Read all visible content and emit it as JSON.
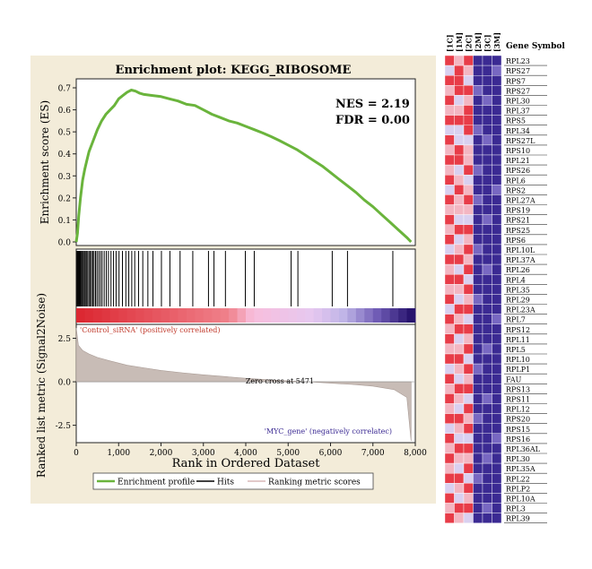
{
  "chart_data": [
    {
      "type": "line",
      "title": "Enrichment plot: KEGG_RIBOSOME",
      "ylabel": "Enrichment score (ES)",
      "xlabel": "Rank in Ordered Dataset",
      "ylim": [
        0.0,
        0.7
      ],
      "xlim": [
        0,
        8000
      ],
      "yticks": [
        "0.7",
        "0.6",
        "0.5",
        "0.4",
        "0.3",
        "0.2",
        "0.1",
        "0.0"
      ],
      "xticks": [
        "0",
        "1,000",
        "2,000",
        "3,000",
        "4,000",
        "5,000",
        "6,000",
        "7,000",
        "8,000"
      ],
      "annotations": {
        "nes": "NES = 2.19",
        "fdr": "FDR = 0.00"
      },
      "series": [
        {
          "name": "Enrichment profile",
          "color": "#6ab43c",
          "x": [
            0,
            30,
            60,
            100,
            150,
            200,
            250,
            300,
            400,
            500,
            600,
            700,
            800,
            900,
            1000,
            1100,
            1200,
            1300,
            1400,
            1500,
            1600,
            1800,
            2000,
            2200,
            2400,
            2600,
            2800,
            3000,
            3200,
            3400,
            3600,
            3800,
            4000,
            4200,
            4400,
            4600,
            4800,
            5000,
            5200,
            5400,
            5600,
            5800,
            6000,
            6200,
            6400,
            6600,
            6800,
            7000,
            7200,
            7400,
            7600,
            7800,
            7900
          ],
          "y": [
            0.0,
            0.04,
            0.12,
            0.2,
            0.28,
            0.33,
            0.37,
            0.41,
            0.46,
            0.51,
            0.55,
            0.58,
            0.6,
            0.62,
            0.65,
            0.665,
            0.68,
            0.69,
            0.685,
            0.675,
            0.67,
            0.665,
            0.66,
            0.65,
            0.64,
            0.625,
            0.62,
            0.6,
            0.58,
            0.565,
            0.55,
            0.54,
            0.525,
            0.51,
            0.495,
            0.478,
            0.46,
            0.44,
            0.42,
            0.395,
            0.37,
            0.345,
            0.315,
            0.285,
            0.255,
            0.225,
            0.19,
            0.16,
            0.125,
            0.09,
            0.055,
            0.02,
            0.0
          ]
        }
      ]
    },
    {
      "type": "line",
      "ylabel": "Ranked list metric (Signal2Noise)",
      "yticks": [
        "2.5",
        "0.0",
        "-2.5"
      ],
      "ylim": [
        -3.5,
        3.3
      ],
      "zero_cross_label": "Zero cross at 5471",
      "zero_cross": 5471,
      "positive_label": "'Control_siRNA' (positively correlated)",
      "negative_label": "'MYC_gene' (negatively correlatec)",
      "hits": [
        20,
        40,
        55,
        75,
        95,
        120,
        140,
        165,
        190,
        215,
        240,
        270,
        300,
        330,
        360,
        390,
        420,
        455,
        490,
        530,
        570,
        610,
        660,
        710,
        760,
        820,
        880,
        940,
        1010,
        1090,
        1170,
        1240,
        1310,
        1380,
        1470,
        1570,
        1690,
        1810,
        2010,
        2210,
        2450,
        2750,
        3120,
        3250,
        3520,
        3990,
        4200,
        5070,
        5230,
        6040,
        6400,
        7470
      ],
      "metric_profile": {
        "x": [
          0,
          50,
          150,
          300,
          500,
          800,
          1200,
          1600,
          2000,
          2500,
          3000,
          3500,
          4000,
          4500,
          5000,
          5471,
          6000,
          6500,
          7000,
          7500,
          7800,
          7900
        ],
        "y": [
          3.1,
          2.1,
          1.8,
          1.6,
          1.4,
          1.2,
          0.95,
          0.8,
          0.65,
          0.52,
          0.4,
          0.3,
          0.2,
          0.12,
          0.05,
          0.0,
          -0.08,
          -0.15,
          -0.25,
          -0.45,
          -0.9,
          -3.4
        ]
      },
      "legend": [
        "Enrichment profile",
        "Hits",
        "Ranking metric scores"
      ],
      "legend_colors": [
        "#6ab43c",
        "#000000",
        "#d9b7b7"
      ]
    },
    {
      "type": "heatmap",
      "columns": [
        "1C",
        "1M",
        "2C",
        "2M",
        "3C",
        "3M"
      ],
      "row_header": "Gene Symbol",
      "rows": [
        "RPL23",
        "RPS27",
        "RPS7",
        "RPS27",
        "RPL30",
        "RPL37",
        "RPS5",
        "RPL34",
        "RPS27L",
        "RPS10",
        "RPL21",
        "RPS26",
        "RPL6",
        "RPS2",
        "RPL27A",
        "RPS19",
        "RPS21",
        "RPS25",
        "RPS6",
        "RPL10L",
        "RPL37A",
        "RPL26",
        "RPL4",
        "RPL35",
        "RPL29",
        "RPL23A",
        "RPL7",
        "RPS12",
        "RPL11",
        "RPL5",
        "RPL10",
        "RPLP1",
        "FAU",
        "RPS13",
        "RPS11",
        "RPL12",
        "RPS20",
        "RPS15",
        "RPS16",
        "RPL36AL",
        "RPL30",
        "RPL35A",
        "RPL22",
        "RPLP2",
        "RPL10A",
        "RPL3",
        "RPL39"
      ],
      "values": [
        [
          5,
          4,
          5,
          1,
          1,
          1
        ],
        [
          3,
          5,
          4,
          1,
          1,
          2
        ],
        [
          5,
          5,
          3,
          1,
          1,
          1
        ],
        [
          4,
          5,
          5,
          2,
          1,
          1
        ],
        [
          5,
          3,
          4,
          1,
          2,
          1
        ],
        [
          4,
          4,
          5,
          1,
          1,
          1
        ],
        [
          5,
          5,
          5,
          1,
          1,
          1
        ],
        [
          3,
          3,
          5,
          2,
          1,
          1
        ],
        [
          5,
          3,
          3,
          1,
          2,
          1
        ],
        [
          4,
          5,
          4,
          1,
          1,
          1
        ],
        [
          5,
          5,
          4,
          1,
          1,
          1
        ],
        [
          4,
          3,
          5,
          2,
          1,
          1
        ],
        [
          5,
          4,
          3,
          1,
          1,
          1
        ],
        [
          3,
          5,
          4,
          1,
          1,
          2
        ],
        [
          5,
          4,
          5,
          2,
          1,
          1
        ],
        [
          4,
          4,
          4,
          1,
          1,
          1
        ],
        [
          5,
          3,
          3,
          1,
          2,
          1
        ],
        [
          4,
          5,
          5,
          1,
          1,
          1
        ],
        [
          5,
          3,
          4,
          1,
          1,
          1
        ],
        [
          3,
          4,
          5,
          2,
          1,
          1
        ],
        [
          5,
          5,
          4,
          1,
          1,
          1
        ],
        [
          4,
          3,
          5,
          1,
          2,
          1
        ],
        [
          5,
          5,
          3,
          1,
          1,
          1
        ],
        [
          4,
          4,
          5,
          1,
          1,
          1
        ],
        [
          5,
          3,
          4,
          2,
          1,
          1
        ],
        [
          3,
          5,
          5,
          1,
          1,
          1
        ],
        [
          5,
          4,
          3,
          1,
          1,
          2
        ],
        [
          4,
          5,
          5,
          1,
          1,
          1
        ],
        [
          5,
          3,
          4,
          1,
          1,
          1
        ],
        [
          4,
          4,
          5,
          1,
          2,
          1
        ],
        [
          5,
          5,
          3,
          1,
          1,
          1
        ],
        [
          3,
          4,
          5,
          2,
          1,
          1
        ],
        [
          5,
          3,
          4,
          1,
          1,
          1
        ],
        [
          4,
          5,
          5,
          1,
          1,
          1
        ],
        [
          5,
          4,
          3,
          1,
          2,
          1
        ],
        [
          4,
          3,
          5,
          1,
          1,
          1
        ],
        [
          5,
          5,
          4,
          2,
          1,
          1
        ],
        [
          3,
          4,
          5,
          1,
          1,
          1
        ],
        [
          5,
          3,
          3,
          1,
          1,
          2
        ],
        [
          4,
          5,
          5,
          1,
          1,
          1
        ],
        [
          5,
          4,
          4,
          1,
          2,
          1
        ],
        [
          4,
          3,
          5,
          1,
          1,
          1
        ],
        [
          5,
          5,
          3,
          2,
          1,
          1
        ],
        [
          3,
          4,
          5,
          1,
          1,
          1
        ],
        [
          5,
          3,
          4,
          1,
          1,
          1
        ],
        [
          4,
          5,
          5,
          1,
          2,
          1
        ],
        [
          5,
          4,
          3,
          1,
          1,
          1
        ]
      ],
      "palette": [
        "#3b2a93",
        "#7868c2",
        "#d9d0f0",
        "#f3b6c2",
        "#e83c48"
      ]
    }
  ]
}
